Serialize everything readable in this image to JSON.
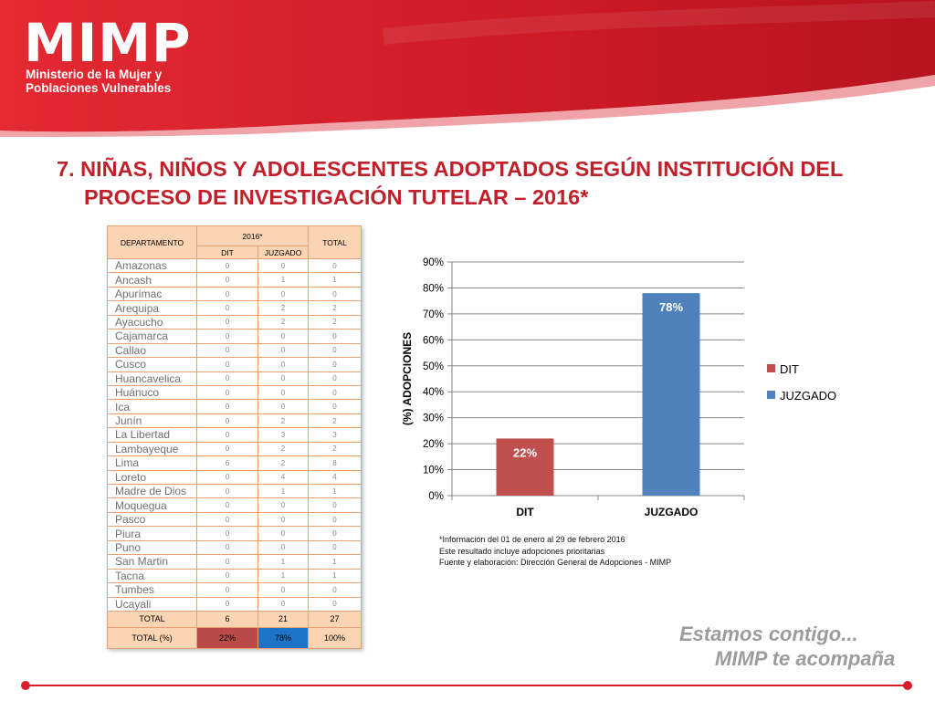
{
  "header": {
    "brand": "MIMP",
    "subtitle_line1": "Ministerio de la Mujer y",
    "subtitle_line2": "Poblaciones Vulnerables"
  },
  "title": {
    "line1": "7. NIÑAS, NIÑOS Y ADOLESCENTES ADOPTADOS SEGÚN INSTITUCIÓN DEL",
    "line2": "PROCESO DE INVESTIGACIÓN TUTELAR – 2016*"
  },
  "table": {
    "headers": {
      "departamento": "DEPARTAMENTO",
      "year": "2016*",
      "total": "TOTAL",
      "dit": "DIT",
      "juzgado": "JUZGADO"
    },
    "rows": [
      {
        "dep": "Amazonas",
        "dit": "0",
        "juz": "0",
        "tot": "0"
      },
      {
        "dep": "Ancash",
        "dit": "0",
        "juz": "1",
        "tot": "1"
      },
      {
        "dep": "Apurímac",
        "dit": "0",
        "juz": "0",
        "tot": "0"
      },
      {
        "dep": "Arequipa",
        "dit": "0",
        "juz": "2",
        "tot": "2"
      },
      {
        "dep": "Ayacucho",
        "dit": "0",
        "juz": "2",
        "tot": "2"
      },
      {
        "dep": "Cajamarca",
        "dit": "0",
        "juz": "0",
        "tot": "0"
      },
      {
        "dep": "Callao",
        "dit": "0",
        "juz": "0",
        "tot": "0"
      },
      {
        "dep": "Cusco",
        "dit": "0",
        "juz": "0",
        "tot": "0"
      },
      {
        "dep": "Huancavelica",
        "dit": "0",
        "juz": "0",
        "tot": "0"
      },
      {
        "dep": "Huánuco",
        "dit": "0",
        "juz": "0",
        "tot": "0"
      },
      {
        "dep": "Ica",
        "dit": "0",
        "juz": "0",
        "tot": "0"
      },
      {
        "dep": "Junín",
        "dit": "0",
        "juz": "2",
        "tot": "2"
      },
      {
        "dep": "La Libertad",
        "dit": "0",
        "juz": "3",
        "tot": "3"
      },
      {
        "dep": "Lambayeque",
        "dit": "0",
        "juz": "2",
        "tot": "2"
      },
      {
        "dep": "Lima",
        "dit": "6",
        "juz": "2",
        "tot": "8"
      },
      {
        "dep": "Loreto",
        "dit": "0",
        "juz": "4",
        "tot": "4"
      },
      {
        "dep": "Madre de Dios",
        "dit": "0",
        "juz": "1",
        "tot": "1"
      },
      {
        "dep": "Moquegua",
        "dit": "0",
        "juz": "0",
        "tot": "0"
      },
      {
        "dep": "Pasco",
        "dit": "0",
        "juz": "0",
        "tot": "0"
      },
      {
        "dep": "Piura",
        "dit": "0",
        "juz": "0",
        "tot": "0"
      },
      {
        "dep": "Puno",
        "dit": "0",
        "juz": "0",
        "tot": "0"
      },
      {
        "dep": "San Martin",
        "dit": "0",
        "juz": "1",
        "tot": "1"
      },
      {
        "dep": "Tacna",
        "dit": "0",
        "juz": "1",
        "tot": "1"
      },
      {
        "dep": "Tumbes",
        "dit": "0",
        "juz": "0",
        "tot": "0"
      },
      {
        "dep": "Ucayali",
        "dit": "0",
        "juz": "0",
        "tot": "0"
      }
    ],
    "total_row": {
      "label": "TOTAL",
      "dit": "6",
      "juz": "21",
      "tot": "27"
    },
    "pct_row": {
      "label": "TOTAL (%)",
      "dit": "22%",
      "juz": "78%",
      "tot": "100%"
    }
  },
  "chart_data": {
    "type": "bar",
    "categories": [
      "DIT",
      "JUZGADO"
    ],
    "values": [
      22,
      78
    ],
    "value_labels": [
      "22%",
      "78%"
    ],
    "colors": [
      "#c0504d",
      "#4f81bd"
    ],
    "ylabel": "(%) ADOPCIONES",
    "ylim": [
      0,
      90
    ],
    "yticks": [
      "0%",
      "10%",
      "20%",
      "30%",
      "40%",
      "50%",
      "60%",
      "70%",
      "80%",
      "90%"
    ],
    "grid": true,
    "legend": [
      "DIT",
      "JUZGADO"
    ],
    "legend_position": "right"
  },
  "notes": [
    "*Información del  01 de enero al 29 de febrero 2016",
    "Este resultado incluye adopciones prioritarias",
    "Fuente y elaboración: Dirección General de Adopciones - MIMP"
  ],
  "slogan": {
    "line1": "Estamos contigo...",
    "line2": "MIMP te acompaña"
  },
  "colors": {
    "brand_red": "#d81e2a",
    "title_red": "#c0202a",
    "dit": "#c0504d",
    "juzgado": "#4f81bd",
    "table_header": "#fbd4b4",
    "table_border": "#e9a171"
  }
}
